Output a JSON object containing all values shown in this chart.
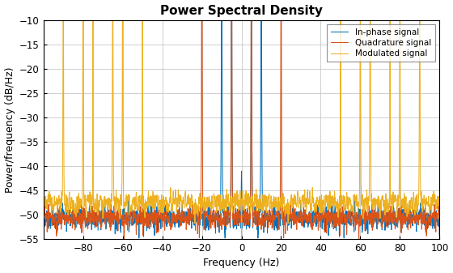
{
  "title": "Power Spectral Density",
  "xlabel": "Frequency (Hz)",
  "ylabel": "Power/frequency (dB/Hz)",
  "xlim": [
    -100,
    100
  ],
  "ylim": [
    -55,
    -10
  ],
  "xticks": [
    -80,
    -60,
    -40,
    -20,
    0,
    20,
    40,
    60,
    80,
    100
  ],
  "yticks": [
    -10,
    -15,
    -20,
    -25,
    -30,
    -35,
    -40,
    -45,
    -50,
    -55
  ],
  "line_colors": [
    "#0072BD",
    "#D95319",
    "#EDB120"
  ],
  "legend_labels": [
    "In-phase signal",
    "Quadrature signal",
    "Modulated signal"
  ],
  "background_color": "#ffffff",
  "grid_color": "#c8c8c8",
  "title_fontsize": 11,
  "label_fontsize": 9,
  "tick_fontsize": 8.5,
  "linewidth": 0.75
}
